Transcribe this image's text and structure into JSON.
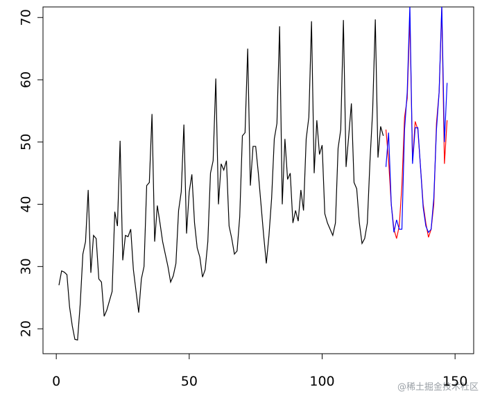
{
  "chart_data": {
    "type": "line",
    "xlim": [
      -5,
      157
    ],
    "ylim": [
      16,
      71.7
    ],
    "xticks": [
      0,
      50,
      100,
      150
    ],
    "yticks": [
      20,
      30,
      40,
      50,
      60,
      70
    ],
    "series": [
      {
        "color": "#000000",
        "x": [
          1,
          2,
          3,
          4,
          5,
          6,
          7,
          8,
          9,
          10,
          11,
          12,
          13,
          14,
          15,
          16,
          17,
          18,
          19,
          20,
          21,
          22,
          23,
          24,
          25,
          26,
          27,
          28,
          29,
          30,
          31,
          32,
          33,
          34,
          35,
          36,
          37,
          38,
          39,
          40,
          41,
          42,
          43,
          44,
          45,
          46,
          47,
          48,
          49,
          50,
          51,
          52,
          53,
          54,
          55,
          56,
          57,
          58,
          59,
          60,
          61,
          62,
          63,
          64,
          65,
          66,
          67,
          68,
          69,
          70,
          71,
          72,
          73,
          74,
          75,
          76,
          77,
          78,
          79,
          80,
          81,
          82,
          83,
          84,
          85,
          86,
          87,
          88,
          89,
          90,
          91,
          92,
          93,
          94,
          95,
          96,
          97,
          98,
          99,
          100,
          101,
          102,
          103,
          104,
          105,
          106,
          107,
          108,
          109,
          110,
          111,
          112,
          113,
          114,
          115,
          116,
          117,
          118,
          119,
          120,
          121,
          122,
          123
        ],
        "values": [
          27,
          29.3,
          29.1,
          28.7,
          23.5,
          20.5,
          18.3,
          18.2,
          24,
          32,
          34,
          42.3,
          29,
          35,
          34.5,
          28,
          27.5,
          22,
          23,
          24.5,
          26,
          38.8,
          36.5,
          50.2,
          31,
          35,
          34.8,
          36,
          29.5,
          26,
          22.6,
          28,
          30,
          43,
          43.5,
          54.5,
          34,
          39.8,
          37,
          34,
          32,
          30,
          27.5,
          28.5,
          30.5,
          39,
          42,
          52.8,
          35.3,
          42,
          44.8,
          37,
          33,
          31.5,
          28.3,
          29.5,
          34,
          45,
          47,
          60.2,
          40,
          46.5,
          45.5,
          47,
          36.5,
          34.5,
          32,
          32.5,
          38,
          51,
          51.5,
          65,
          43,
          49.3,
          49.3,
          45,
          40,
          35,
          30.5,
          35,
          41,
          50.5,
          53,
          68.6,
          40,
          50.5,
          44,
          45,
          37,
          39,
          37.3,
          42.3,
          39,
          50.5,
          54,
          69.4,
          45,
          53.5,
          48,
          49.5,
          38.5,
          37,
          36,
          35,
          37,
          49,
          52,
          69.6,
          46,
          51,
          56.2,
          43.5,
          42.5,
          37,
          33.7,
          34.5,
          37,
          47,
          55,
          69.7,
          47.5,
          52.5,
          51
        ]
      },
      {
        "color": "#ff0000",
        "x": [
          124,
          125,
          126,
          127,
          128,
          129,
          130,
          131,
          132,
          133,
          134,
          135,
          136,
          137,
          138,
          139,
          140,
          141,
          142,
          143,
          144,
          145,
          146,
          147
        ],
        "values": [
          52,
          47,
          40,
          36,
          34.5,
          36.5,
          43,
          54,
          57,
          70,
          47,
          53.3,
          52,
          46,
          40,
          37,
          34.7,
          36,
          40,
          53,
          58,
          71.5,
          46.5,
          53.5
        ]
      },
      {
        "color": "#0000ff",
        "x": [
          124,
          125,
          126,
          127,
          128,
          129,
          130,
          131,
          132,
          133,
          134,
          135,
          136,
          137,
          138,
          139,
          140,
          141,
          142,
          143,
          144,
          145,
          146,
          147
        ],
        "values": [
          46,
          51.5,
          40,
          35.5,
          37.5,
          36,
          36,
          52,
          58,
          72,
          46.5,
          52.3,
          52.3,
          46,
          39.5,
          36.5,
          35.5,
          36,
          41,
          52,
          58,
          72,
          50,
          59.5
        ]
      }
    ],
    "watermark": "@稀土掘金技术社区"
  }
}
